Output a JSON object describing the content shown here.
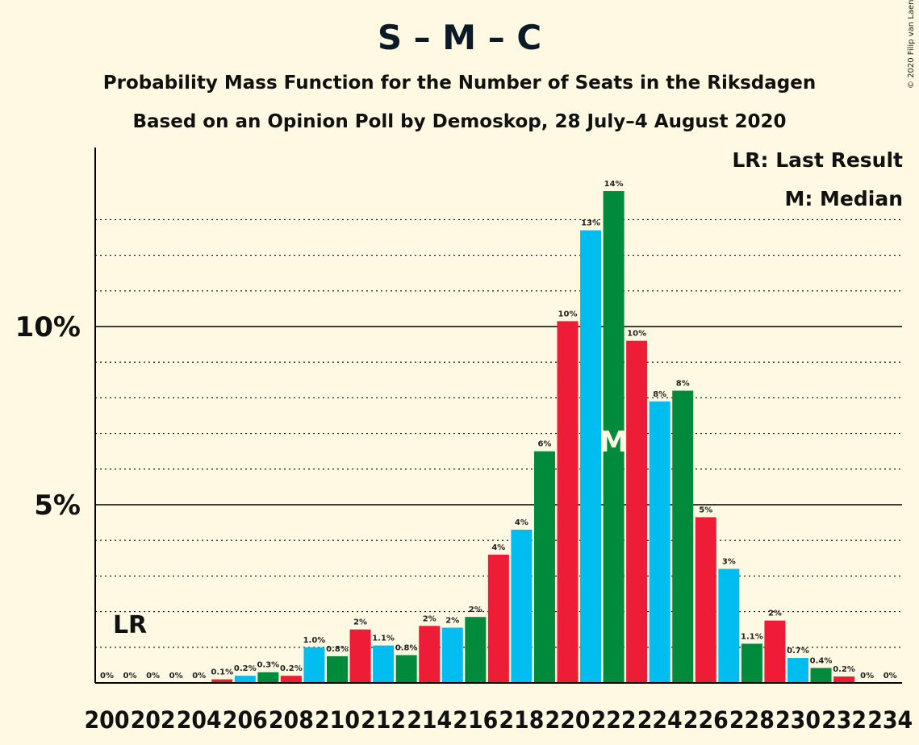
{
  "title": "S – M – C",
  "subtitle1": "Probability Mass Function for the Number of Seats in the Riksdagen",
  "subtitle2": "Based on an Opinion Poll by Demoskop, 28 July–4 August 2020",
  "copyright": "© 2020 Filip van Laenen",
  "legend": {
    "last_result": "LR: Last Result",
    "median": "M: Median"
  },
  "markers": {
    "last_result_label": "LR",
    "last_result_seat": 201,
    "median_label": "M",
    "median_seat": 222
  },
  "colors": {
    "blue": "#00bdf0",
    "green": "#008a3c",
    "red": "#ee1c36",
    "background": "#fff9e3"
  },
  "chart_data": {
    "type": "bar",
    "xlabel": "",
    "ylabel": "",
    "ylim": [
      0,
      15
    ],
    "y_ticks": [
      {
        "value": 5,
        "label": "5%"
      },
      {
        "value": 10,
        "label": "10%"
      }
    ],
    "x_tick_labels": [
      "200",
      "202",
      "204",
      "206",
      "208",
      "210",
      "212",
      "214",
      "216",
      "218",
      "220",
      "222",
      "224",
      "226",
      "228",
      "230",
      "232",
      "234"
    ],
    "x_tick_values": [
      200,
      202,
      204,
      206,
      208,
      210,
      212,
      214,
      216,
      218,
      220,
      222,
      224,
      226,
      228,
      230,
      232,
      234
    ],
    "grid": "dotted lines at every 1%, solid at 5% and 10%",
    "bar_color_cycle": [
      "blue",
      "green",
      "red"
    ],
    "bars": [
      {
        "seats": 200,
        "value": 0.0,
        "label": "0%"
      },
      {
        "seats": 201,
        "value": 0.0,
        "label": "0%"
      },
      {
        "seats": 202,
        "value": 0.0,
        "label": "0%"
      },
      {
        "seats": 203,
        "value": 0.0,
        "label": "0%"
      },
      {
        "seats": 204,
        "value": 0.0,
        "label": "0%"
      },
      {
        "seats": 205,
        "value": 0.1,
        "label": "0.1%"
      },
      {
        "seats": 206,
        "value": 0.2,
        "label": "0.2%"
      },
      {
        "seats": 207,
        "value": 0.3,
        "label": "0.3%"
      },
      {
        "seats": 208,
        "value": 0.2,
        "label": "0.2%"
      },
      {
        "seats": 209,
        "value": 1.0,
        "label": "1.0%"
      },
      {
        "seats": 210,
        "value": 0.75,
        "label": "0.8%"
      },
      {
        "seats": 211,
        "value": 1.5,
        "label": "2%"
      },
      {
        "seats": 212,
        "value": 1.05,
        "label": "1.1%"
      },
      {
        "seats": 213,
        "value": 0.78,
        "label": "0.8%"
      },
      {
        "seats": 214,
        "value": 1.6,
        "label": "2%"
      },
      {
        "seats": 215,
        "value": 1.55,
        "label": "2%"
      },
      {
        "seats": 216,
        "value": 1.85,
        "label": "2%"
      },
      {
        "seats": 217,
        "value": 3.6,
        "label": "4%"
      },
      {
        "seats": 218,
        "value": 4.3,
        "label": "4%"
      },
      {
        "seats": 219,
        "value": 6.5,
        "label": "6%"
      },
      {
        "seats": 220,
        "value": 10.15,
        "label": "10%"
      },
      {
        "seats": 221,
        "value": 12.7,
        "label": "13%"
      },
      {
        "seats": 222,
        "value": 13.8,
        "label": "14%"
      },
      {
        "seats": 223,
        "value": 9.6,
        "label": "10%"
      },
      {
        "seats": 224,
        "value": 7.9,
        "label": "8%"
      },
      {
        "seats": 225,
        "value": 8.2,
        "label": "8%"
      },
      {
        "seats": 226,
        "value": 4.65,
        "label": "5%"
      },
      {
        "seats": 227,
        "value": 3.2,
        "label": "3%"
      },
      {
        "seats": 228,
        "value": 1.1,
        "label": "1.1%"
      },
      {
        "seats": 229,
        "value": 1.75,
        "label": "2%"
      },
      {
        "seats": 230,
        "value": 0.7,
        "label": "0.7%"
      },
      {
        "seats": 231,
        "value": 0.42,
        "label": "0.4%"
      },
      {
        "seats": 232,
        "value": 0.18,
        "label": "0.2%"
      },
      {
        "seats": 233,
        "value": 0.0,
        "label": "0%"
      },
      {
        "seats": 234,
        "value": 0.0,
        "label": "0%"
      }
    ]
  }
}
